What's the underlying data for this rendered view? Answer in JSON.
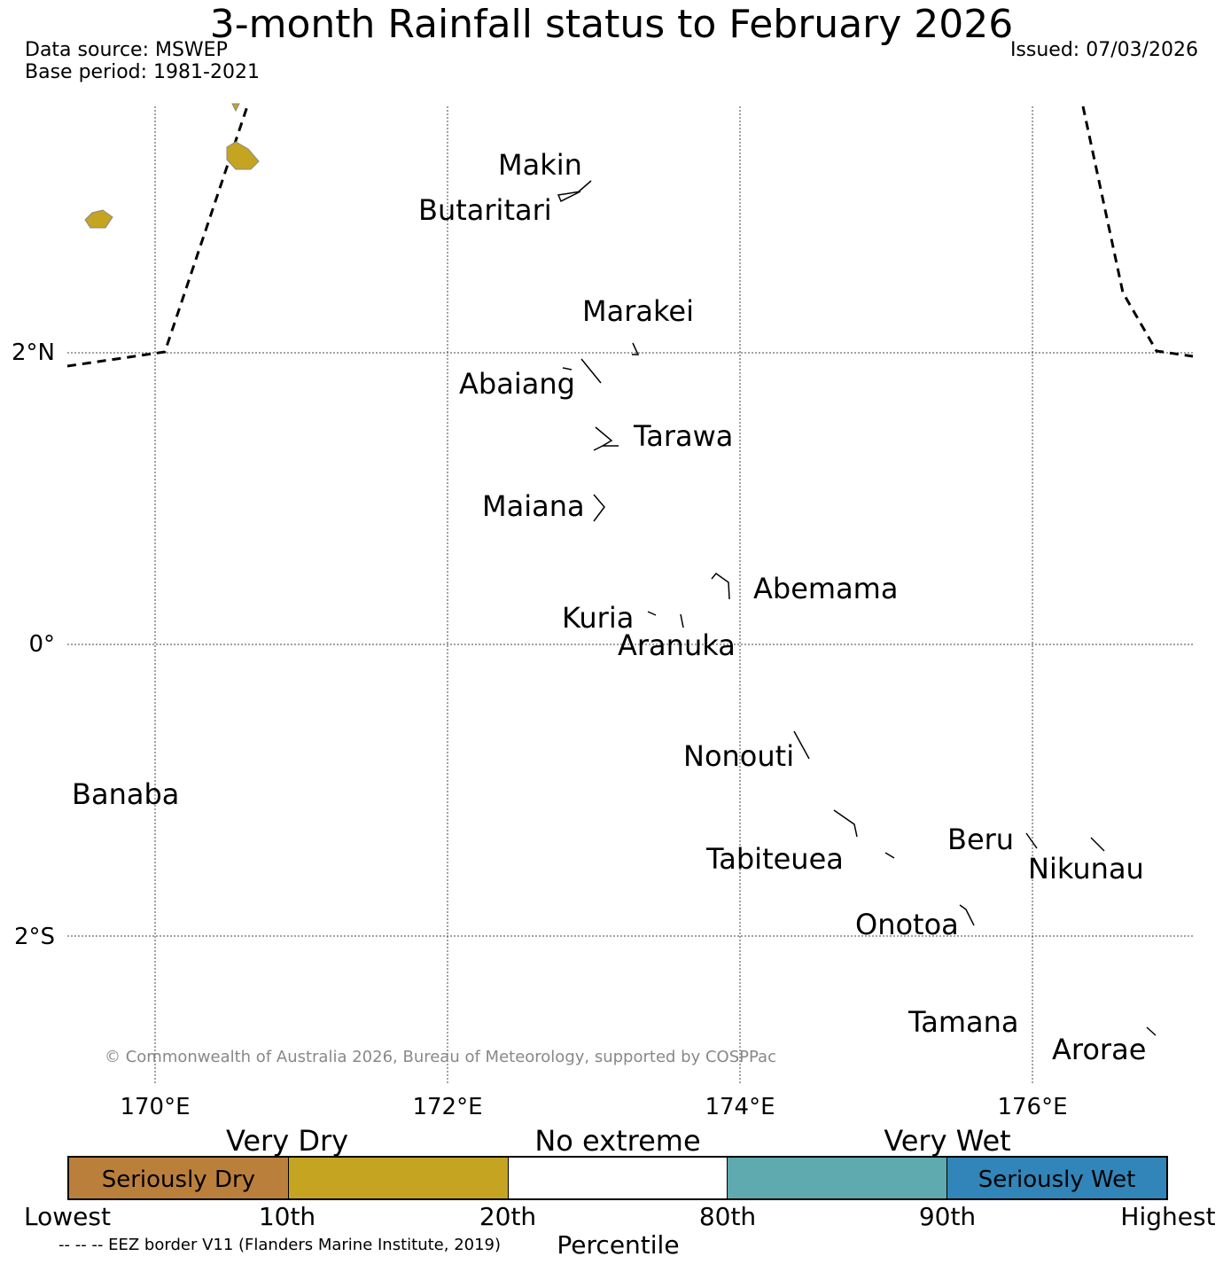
{
  "header": {
    "title": "3-month Rainfall status to February 2026",
    "data_source": "Data source: MSWEP",
    "base_period": "Base period: 1981-2021",
    "issued": "Issued: 07/03/2026"
  },
  "map": {
    "lat_labels": [
      "2°N",
      "0°",
      "2°S"
    ],
    "lon_labels": [
      "170°E",
      "172°E",
      "174°E",
      "176°E"
    ],
    "islands": [
      "Makin",
      "Butaritari",
      "Marakei",
      "Abaiang",
      "Tarawa",
      "Maiana",
      "Abemama",
      "Kuria",
      "Aranuka",
      "Nonouti",
      "Banaba",
      "Beru",
      "Tabiteuea",
      "Nikunau",
      "Onotoa",
      "Tamana",
      "Arorae"
    ],
    "copyright": "© Commonwealth of Australia 2026, Bureau of Meteorology, supported by COSPPac",
    "land_color": "#c4a420"
  },
  "legend": {
    "categories": [
      {
        "label": "Seriously Dry",
        "color": "#bb7f3c"
      },
      {
        "label": "",
        "color": "#c4a420"
      },
      {
        "label": "",
        "color": "#ffffff"
      },
      {
        "label": "",
        "color": "#5eaaae"
      },
      {
        "label": "Seriously Wet",
        "color": "#3185b8"
      }
    ],
    "group_labels": [
      "Very Dry",
      "No extreme",
      "Very Wet"
    ],
    "percentiles": [
      "Lowest",
      "10th",
      "20th",
      "80th",
      "90th",
      "Highest"
    ],
    "axis_title": "Percentile",
    "eez_note": "-- -- -- EEZ border V11 (Flanders Marine Institute, 2019)"
  }
}
